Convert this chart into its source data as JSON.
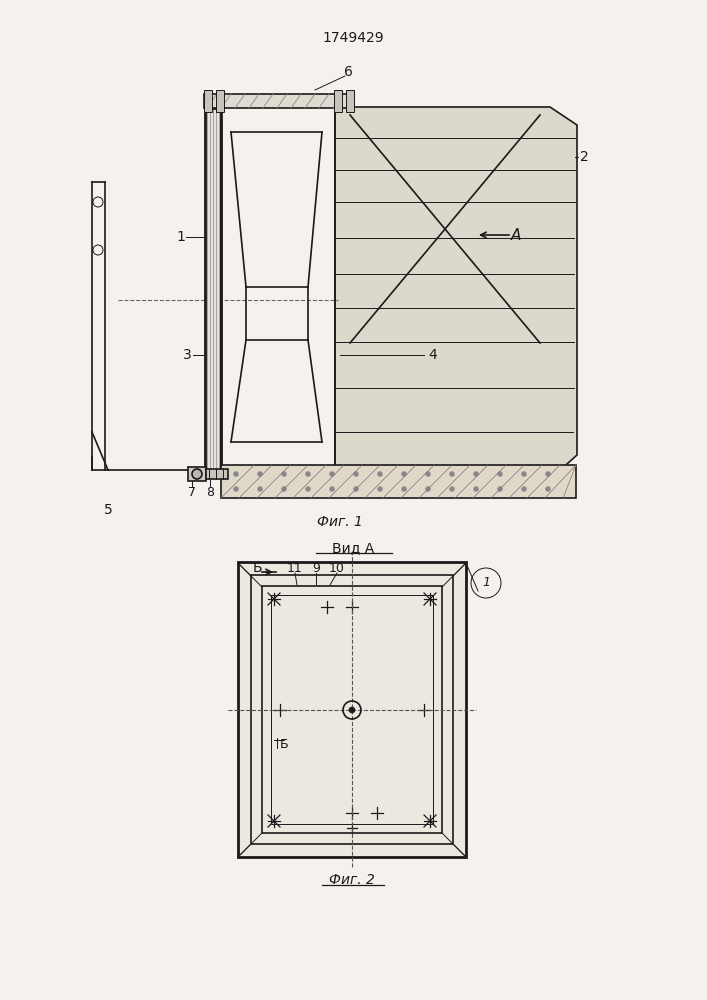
{
  "title": "1749429",
  "fig1_label": "Фиг. 1",
  "fig2_label": "Фиг. 2",
  "vid_label": "Вид A",
  "bg_color": "#f0ece4",
  "line_color": "#1a1a1a",
  "label_6": "6",
  "label_2": "2",
  "label_1": "1",
  "label_A": "А",
  "label_3": "3",
  "label_4": "4",
  "label_5": "5",
  "label_7": "7",
  "label_8": "8",
  "label_9": "9",
  "label_10": "10",
  "label_11": "11",
  "label_b1": "Б",
  "label_b2": "Б"
}
